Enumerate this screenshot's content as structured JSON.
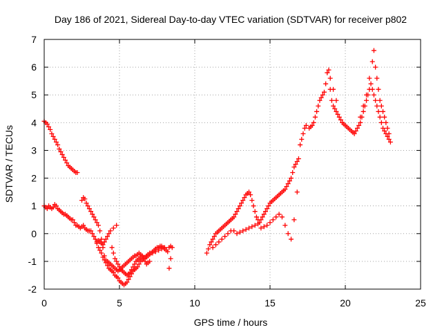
{
  "chart_data": {
    "type": "scatter",
    "title": "Day 186 of 2021, Sidereal Day-to-day VTEC variation (SDTVAR) for receiver p802",
    "xlabel": "GPS time / hours",
    "ylabel": "SDTVAR / TECUs",
    "xlim": [
      0,
      25
    ],
    "ylim": [
      -2,
      7
    ],
    "xticks": [
      "0",
      "5",
      "10",
      "15",
      "20",
      "25"
    ],
    "yticks": [
      "-2",
      "-1",
      "0",
      "1",
      "2",
      "3",
      "4",
      "5",
      "6",
      "7"
    ],
    "grid": true,
    "marker": "+",
    "color": "#ff0000",
    "series": [
      {
        "name": "SDTVAR",
        "x": [
          0.0,
          0.1,
          0.2,
          0.3,
          0.4,
          0.5,
          0.6,
          0.7,
          0.8,
          0.9,
          1.0,
          1.1,
          1.2,
          1.3,
          1.4,
          1.5,
          1.6,
          1.7,
          1.8,
          1.9,
          2.0,
          2.1,
          2.2,
          0.0,
          0.1,
          0.2,
          0.3,
          0.4,
          0.5,
          0.6,
          0.7,
          0.8,
          0.9,
          1.0,
          1.1,
          1.2,
          1.3,
          1.4,
          1.5,
          1.6,
          1.7,
          1.8,
          1.9,
          2.0,
          2.1,
          2.2,
          2.3,
          2.4,
          2.5,
          2.6,
          2.7,
          2.8,
          2.9,
          3.0,
          3.1,
          3.2,
          3.3,
          3.4,
          3.5,
          3.6,
          3.7,
          3.8,
          3.9,
          4.0,
          4.1,
          4.2,
          4.3,
          4.4,
          4.5,
          4.6,
          4.7,
          4.8,
          4.9,
          5.0,
          5.1,
          5.2,
          5.3,
          5.4,
          5.5,
          5.6,
          5.7,
          5.8,
          5.9,
          6.0,
          6.1,
          6.2,
          6.3,
          6.4,
          6.5,
          6.6,
          6.7,
          6.8,
          6.9,
          7.0,
          7.1,
          7.2,
          7.3,
          7.4,
          7.5,
          7.6,
          7.7,
          7.8,
          7.9,
          8.0,
          8.1,
          8.2,
          8.3,
          8.4,
          8.5,
          2.5,
          2.6,
          2.7,
          2.8,
          2.9,
          3.0,
          3.1,
          3.2,
          3.3,
          3.4,
          3.5,
          3.6,
          3.7,
          3.8,
          3.9,
          4.0,
          4.1,
          4.2,
          4.3,
          4.4,
          4.5,
          4.6,
          4.7,
          4.8,
          4.9,
          5.0,
          5.1,
          5.2,
          5.3,
          5.4,
          5.5,
          5.6,
          5.7,
          5.8,
          5.9,
          6.0,
          6.1,
          6.2,
          6.3,
          6.4,
          6.5,
          6.6,
          6.7,
          6.8,
          6.9,
          7.0,
          7.2,
          7.4,
          7.6,
          7.8,
          8.0,
          3.5,
          3.6,
          3.7,
          3.8,
          3.9,
          4.0,
          4.1,
          4.2,
          4.3,
          4.4,
          4.5,
          4.6,
          4.7,
          4.8,
          4.9,
          5.0,
          5.1,
          5.2,
          5.3,
          5.4,
          5.5,
          5.6,
          5.7,
          5.8,
          5.9,
          6.0,
          6.1,
          6.2,
          6.3,
          6.4,
          6.5,
          6.6,
          6.7,
          6.8,
          6.9,
          7.0,
          8.3,
          8.4,
          4.6,
          4.8,
          10.8,
          10.9,
          11.0,
          11.1,
          11.2,
          11.3,
          11.4,
          11.5,
          11.6,
          11.7,
          11.8,
          11.9,
          12.0,
          12.1,
          12.2,
          12.3,
          12.4,
          12.5,
          12.6,
          12.7,
          12.8,
          12.9,
          13.0,
          13.1,
          13.2,
          13.3,
          13.4,
          13.5,
          13.6,
          13.7,
          13.8,
          13.9,
          14.0,
          14.1,
          14.2,
          14.3,
          14.4,
          14.5,
          14.6,
          14.7,
          14.8,
          14.9,
          15.0,
          15.1,
          15.2,
          15.3,
          15.4,
          15.5,
          15.6,
          15.7,
          15.8,
          15.9,
          16.0,
          16.1,
          16.2,
          16.3,
          16.4,
          16.5,
          16.6,
          16.7,
          16.8,
          16.9,
          17.0,
          17.1,
          17.2,
          17.3,
          17.4,
          11.2,
          11.4,
          11.6,
          11.8,
          12.0,
          12.2,
          12.4,
          12.6,
          12.8,
          13.0,
          13.2,
          13.4,
          13.6,
          13.8,
          14.0,
          14.2,
          14.4,
          14.6,
          14.8,
          15.0,
          15.2,
          15.4,
          15.6,
          15.8,
          16.0,
          16.2,
          16.4,
          16.6,
          16.8,
          17.6,
          17.7,
          17.8,
          17.9,
          18.0,
          18.1,
          18.2,
          18.3,
          18.4,
          18.5,
          18.6,
          18.7,
          18.8,
          18.9,
          19.0,
          19.1,
          19.2,
          19.3,
          19.4,
          19.5,
          19.6,
          19.7,
          19.8,
          19.9,
          20.0,
          20.1,
          20.2,
          20.3,
          20.4,
          20.5,
          20.6,
          20.7,
          20.8,
          20.9,
          21.0,
          21.1,
          21.2,
          21.3,
          21.4,
          21.5,
          21.6,
          21.7,
          21.8,
          21.9,
          22.0,
          22.1,
          22.2,
          22.3,
          22.4,
          22.5,
          22.6,
          22.7,
          22.8,
          22.9,
          18.8,
          19.0,
          19.2,
          19.4,
          21.0,
          21.2,
          21.4,
          21.6,
          21.8,
          21.9,
          22.0,
          22.1,
          22.2,
          22.3,
          22.4,
          22.5,
          22.6,
          22.7,
          22.8,
          22.9,
          23.0
        ],
        "y": [
          4.05,
          4.0,
          3.95,
          3.85,
          3.75,
          3.6,
          3.5,
          3.4,
          3.3,
          3.2,
          3.05,
          2.95,
          2.85,
          2.75,
          2.65,
          2.55,
          2.45,
          2.4,
          2.35,
          2.3,
          2.25,
          2.2,
          2.2,
          1.0,
          0.95,
          0.9,
          1.0,
          0.95,
          0.9,
          0.95,
          1.05,
          1.0,
          0.9,
          0.85,
          0.8,
          0.75,
          0.7,
          0.7,
          0.65,
          0.6,
          0.55,
          0.5,
          0.5,
          0.4,
          0.3,
          0.3,
          0.25,
          0.2,
          0.25,
          0.3,
          0.2,
          0.15,
          0.1,
          0.1,
          0.1,
          0.0,
          -0.1,
          -0.2,
          -0.35,
          -0.5,
          -0.6,
          -0.7,
          -0.85,
          -0.95,
          -1.05,
          -1.15,
          -1.25,
          -1.3,
          -1.35,
          -1.4,
          -1.5,
          -1.55,
          -1.6,
          -1.7,
          -1.75,
          -1.8,
          -1.85,
          -1.8,
          -1.75,
          -1.65,
          -1.55,
          -1.45,
          -1.35,
          -1.3,
          -1.25,
          -1.2,
          -1.1,
          -1.0,
          -0.95,
          -0.9,
          -0.85,
          -0.8,
          -0.75,
          -0.7,
          -0.7,
          -0.65,
          -0.6,
          -0.55,
          -0.5,
          -0.5,
          -0.45,
          -0.45,
          -0.5,
          -0.55,
          -0.6,
          -0.65,
          -0.5,
          -0.45,
          -0.5,
          1.2,
          1.3,
          1.25,
          1.1,
          1.0,
          0.9,
          0.8,
          0.7,
          0.6,
          0.5,
          0.4,
          0.3,
          0.1,
          -0.2,
          -0.5,
          -0.8,
          -0.95,
          -1.0,
          -1.05,
          -1.1,
          -1.15,
          -1.2,
          -1.25,
          -1.3,
          -1.35,
          -1.3,
          -1.25,
          -1.2,
          -1.15,
          -1.1,
          -1.05,
          -1.0,
          -0.95,
          -0.9,
          -0.85,
          -0.8,
          -0.8,
          -0.75,
          -0.7,
          -0.75,
          -0.8,
          -0.85,
          -0.9,
          -0.85,
          -0.8,
          -0.75,
          -0.7,
          -0.65,
          -0.6,
          -0.55,
          -0.5,
          -0.3,
          -0.25,
          -0.3,
          -0.35,
          -0.4,
          -0.3,
          -0.2,
          -0.1,
          0.0,
          0.1,
          -0.5,
          -0.7,
          -0.9,
          -1.0,
          -1.1,
          -1.2,
          -1.3,
          -1.35,
          -1.4,
          -1.45,
          -1.5,
          -1.45,
          -1.4,
          -1.3,
          -1.2,
          -1.1,
          -1.0,
          -0.95,
          -0.9,
          -0.85,
          -0.8,
          -0.9,
          -1.0,
          -1.1,
          -1.05,
          -1.0,
          -1.25,
          -0.9,
          0.2,
          0.3,
          -0.7,
          -0.55,
          -0.4,
          -0.3,
          -0.2,
          -0.1,
          0.0,
          0.05,
          0.1,
          0.15,
          0.2,
          0.25,
          0.3,
          0.35,
          0.4,
          0.45,
          0.5,
          0.55,
          0.6,
          0.7,
          0.8,
          0.9,
          1.0,
          1.1,
          1.2,
          1.3,
          1.4,
          1.45,
          1.5,
          1.4,
          1.2,
          1.0,
          0.8,
          0.6,
          0.5,
          0.4,
          0.5,
          0.6,
          0.7,
          0.8,
          0.9,
          1.0,
          1.1,
          1.15,
          1.2,
          1.25,
          1.3,
          1.35,
          1.4,
          1.45,
          1.5,
          1.55,
          1.6,
          1.7,
          1.8,
          1.9,
          2.0,
          2.2,
          2.4,
          2.5,
          2.6,
          2.7,
          3.2,
          3.4,
          3.6,
          3.8,
          3.9,
          -0.5,
          -0.4,
          -0.3,
          -0.2,
          -0.1,
          0.0,
          0.1,
          0.1,
          0.0,
          0.05,
          0.1,
          0.15,
          0.2,
          0.25,
          0.3,
          0.35,
          0.2,
          0.25,
          0.3,
          0.4,
          0.5,
          0.6,
          0.7,
          0.6,
          0.3,
          0.0,
          -0.2,
          0.5,
          1.5,
          3.8,
          3.85,
          3.9,
          4.0,
          4.2,
          4.4,
          4.6,
          4.8,
          4.9,
          5.0,
          5.1,
          5.4,
          5.8,
          5.9,
          5.2,
          4.8,
          4.6,
          4.5,
          4.4,
          4.3,
          4.2,
          4.1,
          4.0,
          3.95,
          3.9,
          3.85,
          3.8,
          3.75,
          3.7,
          3.65,
          3.6,
          3.7,
          3.8,
          3.9,
          4.0,
          4.2,
          4.4,
          4.6,
          4.8,
          5.0,
          5.2,
          5.4,
          5.2,
          5.0,
          4.8,
          4.6,
          4.4,
          4.2,
          4.0,
          3.8,
          3.7,
          3.6,
          3.5,
          3.4,
          5.8,
          5.6,
          5.2,
          4.8,
          4.2,
          4.6,
          5.0,
          5.6,
          6.2,
          6.6,
          6.0,
          5.6,
          5.2,
          4.8,
          4.6,
          4.4,
          4.2,
          4.0,
          3.8,
          3.6,
          3.3
        ]
      }
    ]
  }
}
